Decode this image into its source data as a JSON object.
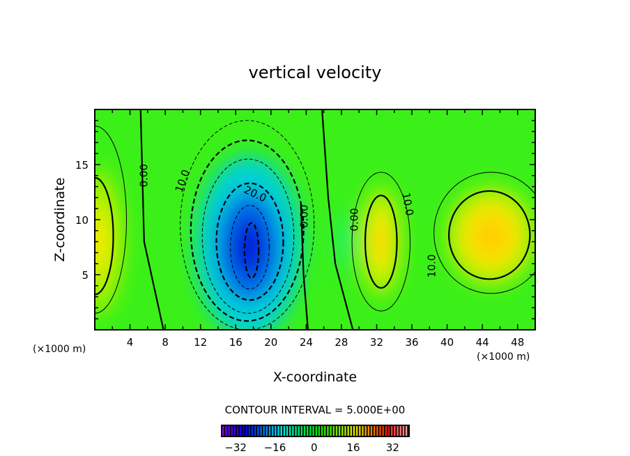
{
  "chart_data": {
    "type": "heatmap",
    "title": "vertical velocity",
    "xlabel": "X-coordinate",
    "ylabel": "Z-coordinate",
    "x_unit_left": "(×1000 m)",
    "x_unit_right": "(×1000 m)",
    "xlim": [
      0,
      50
    ],
    "ylim": [
      0,
      20
    ],
    "xticks": [
      "4",
      "8",
      "12",
      "16",
      "20",
      "24",
      "28",
      "32",
      "36",
      "40",
      "44",
      "48"
    ],
    "xtick_values": [
      4,
      8,
      12,
      16,
      20,
      24,
      28,
      32,
      36,
      40,
      44,
      48
    ],
    "yticks": [
      "5",
      "10",
      "15"
    ],
    "ytick_values": [
      5,
      10,
      15
    ],
    "contour_interval_text": "CONTOUR INTERVAL = 5.000E+00",
    "colorbar": {
      "range": [
        -38,
        39
      ],
      "ticks": [
        "−32",
        "−16",
        "0",
        "16",
        "32"
      ],
      "tick_values": [
        -32,
        -16,
        0,
        16,
        32
      ]
    },
    "colors": {
      "zero": "#33ee22",
      "negative_peak": "#0018d8",
      "positive_peak": "#ffd400"
    },
    "features": [
      {
        "x": 17.5,
        "z": 7.5,
        "rx": 5.5,
        "rz": 7.5,
        "value": -25
      },
      {
        "x": 0.5,
        "z": 8,
        "rx": 2.5,
        "rz": 6,
        "value": 8
      },
      {
        "x": 32.5,
        "z": 8,
        "rx": 2.0,
        "rz": 4.5,
        "value": 11
      },
      {
        "x": 45,
        "z": 8.5,
        "rx": 4.5,
        "rz": 4,
        "value": 13
      },
      {
        "x": 28.5,
        "z": 8,
        "rx": 1.2,
        "rz": 3,
        "value": -4
      }
    ],
    "contours": [
      {
        "x": 17.3,
        "z": 9.5,
        "rx": 7.6,
        "rz": 9.5,
        "level": -5
      },
      {
        "x": 17.3,
        "z": 9,
        "rx": 6.4,
        "rz": 8.2,
        "level": -10
      },
      {
        "x": 17.4,
        "z": 8.5,
        "rx": 5.2,
        "rz": 7,
        "level": -15
      },
      {
        "x": 17.6,
        "z": 8,
        "rx": 3.8,
        "rz": 5.3,
        "level": -20
      },
      {
        "x": 17.6,
        "z": 7.5,
        "rx": 2.2,
        "rz": 3.8,
        "level": -25
      },
      {
        "x": 17.8,
        "z": 7.2,
        "rx": 0.8,
        "rz": 2.5,
        "level": -30
      },
      {
        "x": 32.5,
        "z": 8,
        "rx": 3.3,
        "rz": 6.3,
        "level": 5
      },
      {
        "x": 32.5,
        "z": 8,
        "rx": 1.8,
        "rz": 4.2,
        "level": 10
      },
      {
        "x": 45,
        "z": 8.8,
        "rx": 6.5,
        "rz": 5.5,
        "level": 5
      },
      {
        "x": 44.8,
        "z": 8.6,
        "rx": 4.6,
        "rz": 4,
        "level": 10
      },
      {
        "x": 0,
        "z": 8.5,
        "rx": 2.1,
        "rz": 5.3,
        "level": 0
      },
      {
        "x": 0,
        "z": 10,
        "rx": 3.6,
        "rz": 8.5,
        "level": 5
      }
    ],
    "contour_labels": [
      {
        "text": "0.00",
        "x": 5.6,
        "z": 14,
        "rot": -90
      },
      {
        "text": "10.0",
        "x": 10,
        "z": 13.5,
        "rot": -70
      },
      {
        "text": "20.0",
        "x": 18.2,
        "z": 12.3,
        "rot": 25
      },
      {
        "text": "0.00",
        "x": 23.8,
        "z": 10.3,
        "rot": -90
      },
      {
        "text": "0.00",
        "x": 29.5,
        "z": 10,
        "rot": -90
      },
      {
        "text": "10.0",
        "x": 35.5,
        "z": 11.4,
        "rot": 80
      },
      {
        "text": "10.0",
        "x": 38.3,
        "z": 5.8,
        "rot": -90
      }
    ]
  }
}
